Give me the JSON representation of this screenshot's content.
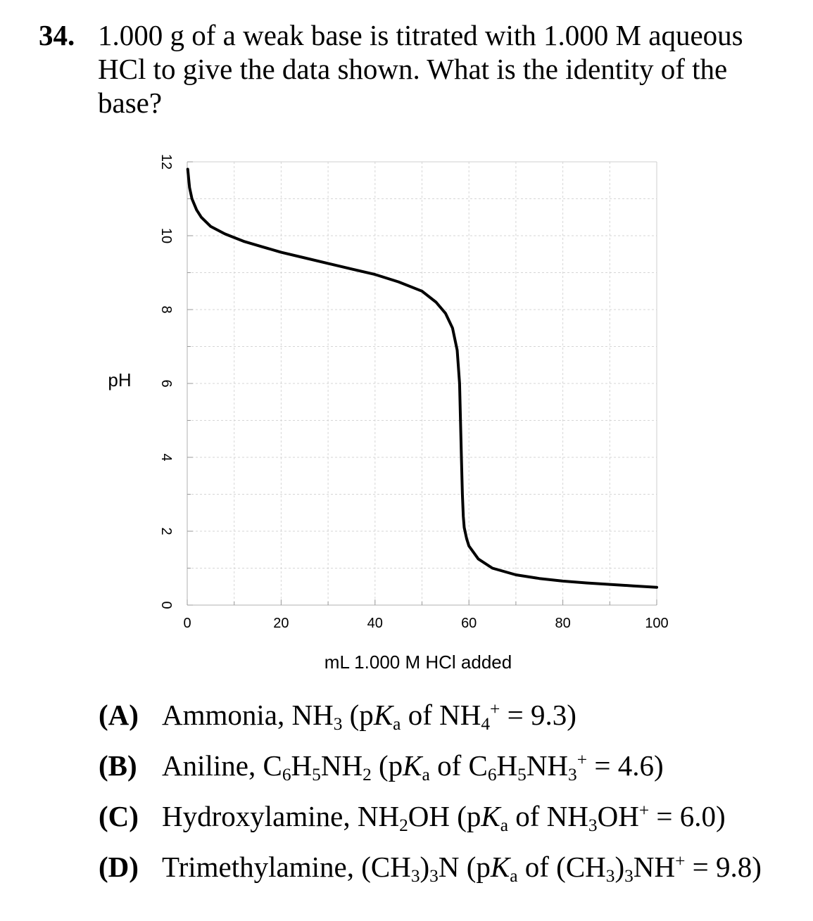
{
  "question": {
    "number": "34.",
    "lines": [
      "1.000 g of a weak base is titrated with 1.000 M aqueous",
      "HCl to give the data shown.  What is the identity of the",
      "base?"
    ]
  },
  "chart_data": {
    "type": "line",
    "title": "",
    "xlabel": "mL 1.000 M HCl added",
    "ylabel": "pH",
    "xlim": [
      0,
      100
    ],
    "ylim": [
      0,
      12
    ],
    "x_ticks": [
      "0",
      "20",
      "40",
      "60",
      "80",
      "100"
    ],
    "y_ticks": [
      "0",
      "2",
      "4",
      "6",
      "8",
      "10",
      "12"
    ],
    "grid": true,
    "series": [
      {
        "x": [
          0.1,
          0.5,
          1,
          2,
          3,
          5,
          8,
          12,
          16,
          20,
          25,
          30,
          35,
          40,
          45,
          50,
          53,
          55,
          56.5,
          57.5,
          58,
          58.2,
          58.4,
          58.6,
          58.8,
          59,
          59.5,
          60,
          62,
          65,
          70,
          75,
          80,
          85,
          90,
          95,
          100
        ],
        "y": [
          11.8,
          11.3,
          11.0,
          10.7,
          10.5,
          10.25,
          10.05,
          9.85,
          9.7,
          9.55,
          9.4,
          9.25,
          9.1,
          8.95,
          8.75,
          8.5,
          8.2,
          7.9,
          7.5,
          6.9,
          6.0,
          5.0,
          4.0,
          3.0,
          2.4,
          2.1,
          1.8,
          1.6,
          1.25,
          1.0,
          0.82,
          0.72,
          0.65,
          0.6,
          0.56,
          0.52,
          0.48
        ]
      }
    ]
  },
  "choices": [
    {
      "letter": "(A)",
      "name": "Ammonia, NH",
      "parts": [
        "3",
        " (p",
        "K",
        "a",
        " of NH",
        "4",
        "+",
        " = 9.3)"
      ]
    },
    {
      "letter": "(B)",
      "name": "Aniline, C",
      "parts": [
        "6",
        "H",
        "5",
        "NH",
        "2",
        " (p",
        "K",
        "a",
        " of C",
        "6",
        "H",
        "5",
        "NH",
        "3",
        "+",
        " = 4.6)"
      ]
    },
    {
      "letter": "(C)",
      "name": "Hydroxylamine, NH",
      "parts": [
        "2",
        "OH (p",
        "K",
        "a",
        " of NH",
        "3",
        "OH",
        "+",
        " = 6.0)"
      ]
    },
    {
      "letter": "(D)",
      "name": "Trimethylamine, (CH",
      "parts": [
        "3",
        ")",
        "3",
        "N (p",
        "K",
        "a",
        " of (CH",
        "3",
        ")",
        "3",
        "NH",
        "+",
        " = 9.8)"
      ]
    }
  ]
}
